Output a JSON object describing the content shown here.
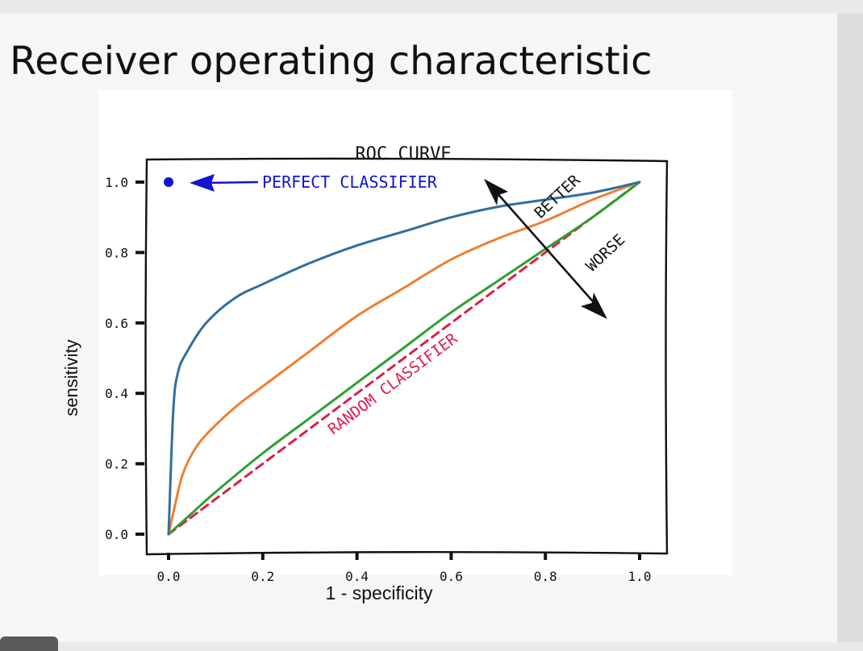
{
  "slide": {
    "title": "Receiver operating characteristic",
    "xlabel": "1 - specificity",
    "ylabel": "sensitivity"
  },
  "chart_data": {
    "type": "line",
    "title": "ROC CURVE",
    "xlim": [
      0,
      1
    ],
    "ylim": [
      0,
      1
    ],
    "x_ticks": [
      "0.0",
      "0.2",
      "0.4",
      "0.6",
      "0.8",
      "1.0"
    ],
    "y_ticks": [
      "0.0",
      "0.2",
      "0.4",
      "0.6",
      "0.8",
      "1.0"
    ],
    "grid": false,
    "perfect_point": {
      "x": 0.0,
      "y": 1.0,
      "label": "PERFECT CLASSIFIER",
      "color": "#1414d2"
    },
    "annotations": {
      "random": "RANDOM CLASSIFIER",
      "better": "BETTER",
      "worse": "WORSE"
    },
    "series": [
      {
        "color": "#2e6fa0",
        "style": "solid",
        "x": [
          0.0,
          0.01,
          0.02,
          0.04,
          0.08,
          0.14,
          0.2,
          0.3,
          0.4,
          0.5,
          0.6,
          0.7,
          0.8,
          0.9,
          1.0
        ],
        "y": [
          0.0,
          0.35,
          0.46,
          0.52,
          0.6,
          0.67,
          0.71,
          0.77,
          0.82,
          0.86,
          0.9,
          0.93,
          0.95,
          0.97,
          1.0
        ]
      },
      {
        "color": "#ee7f33",
        "style": "solid",
        "x": [
          0.0,
          0.01,
          0.03,
          0.06,
          0.1,
          0.15,
          0.2,
          0.3,
          0.4,
          0.5,
          0.6,
          0.7,
          0.8,
          0.9,
          1.0
        ],
        "y": [
          0.0,
          0.06,
          0.17,
          0.25,
          0.31,
          0.37,
          0.42,
          0.52,
          0.62,
          0.7,
          0.78,
          0.84,
          0.89,
          0.95,
          1.0
        ]
      },
      {
        "color": "#2da02d",
        "style": "solid",
        "x": [
          0.0,
          0.05,
          0.1,
          0.2,
          0.3,
          0.4,
          0.5,
          0.6,
          0.7,
          0.8,
          0.9,
          1.0
        ],
        "y": [
          0.0,
          0.06,
          0.12,
          0.23,
          0.33,
          0.43,
          0.53,
          0.63,
          0.72,
          0.81,
          0.9,
          1.0
        ]
      },
      {
        "color": "#dc1e46",
        "style": "dashed",
        "x": [
          0.0,
          1.0
        ],
        "y": [
          0.0,
          1.0
        ]
      }
    ]
  }
}
